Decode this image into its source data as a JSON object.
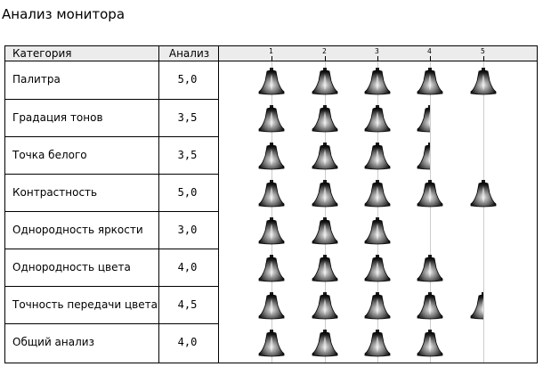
{
  "page_title": "Анализ монитора",
  "table": {
    "col_category": "Категория",
    "col_score": "Анализ"
  },
  "icon": "bell-rating-icon",
  "colors": {
    "grid": "#cccccc",
    "header_bg": "#ececec",
    "icon": "#1a1a1a"
  },
  "chart_data": {
    "type": "bar",
    "categories": [
      "Палитра",
      "Градация тонов",
      "Точка белого",
      "Контрастность",
      "Однородность яркости",
      "Однородность цвета",
      "Точность передачи цвета",
      "Общий анализ"
    ],
    "values": [
      5.0,
      3.5,
      3.5,
      5.0,
      3.0,
      4.0,
      4.5,
      4.0
    ],
    "score_labels": [
      "5,0",
      "3,5",
      "3,5",
      "5,0",
      "3,0",
      "4,0",
      "4,5",
      "4,0"
    ],
    "x_ticks": [
      "1",
      "2",
      "3",
      "4",
      "5"
    ],
    "xlim": [
      0,
      5
    ],
    "grid": true
  }
}
